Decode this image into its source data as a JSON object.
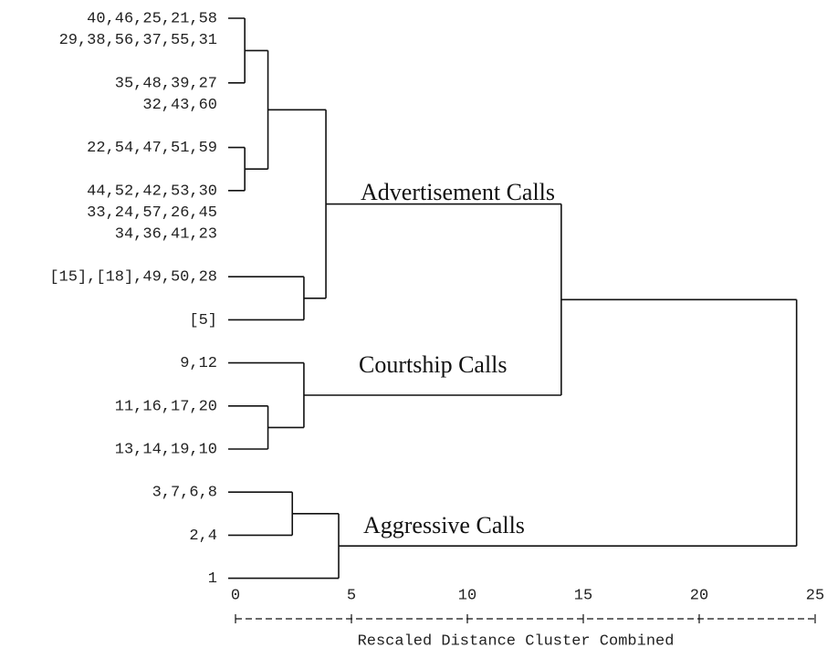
{
  "chart_data": {
    "type": "dendrogram",
    "xlabel": "Rescaled Distance Cluster Combined",
    "xlim": [
      0,
      25
    ],
    "xticks": [
      0,
      5,
      10,
      15,
      20,
      25
    ],
    "annotations": [
      "Advertisement Calls",
      "Courtship Calls",
      "Aggressive Calls"
    ],
    "tree": {
      "height": 24.2,
      "children": [
        {
          "height": 14.05,
          "children": [
            {
              "height": 3.9,
              "children": [
                {
                  "height": 1.4,
                  "children": [
                    {
                      "height": 0.4,
                      "children": [
                        {
                          "labels": [
                            "40,46,25,21,58",
                            "29,38,56,37,55,31"
                          ]
                        },
                        {
                          "labels": [
                            "35,48,39,27",
                            "32,43,60"
                          ]
                        }
                      ]
                    },
                    {
                      "height": 0.4,
                      "children": [
                        {
                          "labels": [
                            "22,54,47,51,59"
                          ]
                        },
                        {
                          "labels": [
                            "44,52,42,53,30",
                            "33,24,57,26,45",
                            "34,36,41,23"
                          ]
                        }
                      ]
                    }
                  ]
                },
                {
                  "height": 2.95,
                  "children": [
                    {
                      "labels": [
                        "[15],[18],49,50,28"
                      ]
                    },
                    {
                      "labels": [
                        "[5]"
                      ]
                    }
                  ]
                }
              ]
            },
            {
              "height": 2.95,
              "children": [
                {
                  "labels": [
                    "9,12"
                  ]
                },
                {
                  "height": 1.4,
                  "children": [
                    {
                      "labels": [
                        "11,16,17,20"
                      ]
                    },
                    {
                      "labels": [
                        "13,14,19,10"
                      ]
                    }
                  ]
                }
              ]
            }
          ]
        },
        {
          "height": 4.45,
          "children": [
            {
              "height": 2.45,
              "children": [
                {
                  "labels": [
                    "3,7,6,8"
                  ]
                },
                {
                  "labels": [
                    "2,4"
                  ]
                }
              ]
            },
            {
              "labels": [
                "1"
              ]
            }
          ]
        }
      ]
    }
  }
}
